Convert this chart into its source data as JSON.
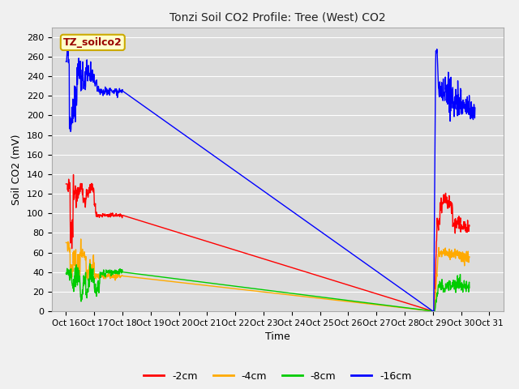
{
  "title": "Tonzi Soil CO2 Profile: Tree (West) CO2",
  "xlabel": "Time",
  "ylabel": "Soil CO2 (mV)",
  "ylim": [
    0,
    290
  ],
  "yticks": [
    0,
    20,
    40,
    60,
    80,
    100,
    120,
    140,
    160,
    180,
    200,
    220,
    240,
    260,
    280
  ],
  "xtick_labels": [
    "Oct 16",
    "Oct 17",
    "Oct 18",
    "Oct 19",
    "Oct 20",
    "Oct 21",
    "Oct 22",
    "Oct 23",
    "Oct 24",
    "Oct 25",
    "Oct 26",
    "Oct 27",
    "Oct 28",
    "Oct 29",
    "Oct 30",
    "Oct 31"
  ],
  "fig_bg_color": "#f0f0f0",
  "plot_bg_color": "#dcdcdc",
  "grid_color": "#ffffff",
  "label_box_text": "TZ_soilco2",
  "label_box_bg": "#ffffcc",
  "label_box_edge": "#ccaa00",
  "colors": {
    "2cm": "#ff0000",
    "4cm": "#ffaa00",
    "8cm": "#00cc00",
    "16cm": "#0000ff"
  },
  "legend_labels": [
    "-2cm",
    "-4cm",
    "-8cm",
    "-16cm"
  ],
  "xlim": [
    0.5,
    16.5
  ]
}
